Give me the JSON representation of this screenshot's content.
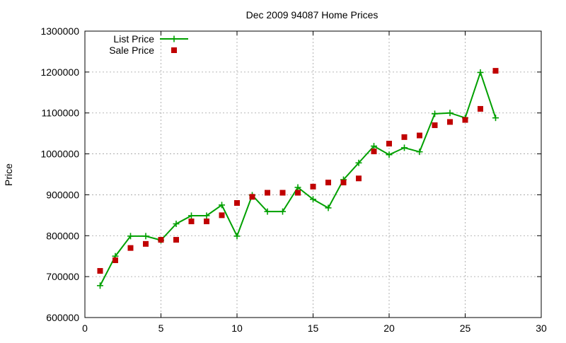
{
  "chart_data": {
    "type": "line",
    "title": "Dec 2009 94087 Home Prices",
    "xlabel": "",
    "ylabel": "Price",
    "xlim": [
      0,
      30
    ],
    "ylim": [
      600000,
      1300000
    ],
    "x_ticks": [
      0,
      5,
      10,
      15,
      20,
      25,
      30
    ],
    "y_ticks": [
      600000,
      700000,
      800000,
      900000,
      1000000,
      1100000,
      1200000,
      1300000
    ],
    "grid": true,
    "legend_position": "top-left",
    "series": [
      {
        "name": "List Price",
        "style": "line-with-plus-markers",
        "color": "#00a000",
        "x": [
          1,
          2,
          3,
          4,
          5,
          6,
          7,
          8,
          9,
          10,
          11,
          12,
          13,
          14,
          15,
          16,
          17,
          18,
          19,
          20,
          21,
          22,
          23,
          24,
          25,
          26,
          27
        ],
        "y": [
          678000,
          750000,
          799000,
          799000,
          789000,
          829000,
          849000,
          849000,
          875000,
          799000,
          899000,
          859000,
          859000,
          918000,
          889000,
          868000,
          937000,
          978000,
          1019000,
          998000,
          1015000,
          1005000,
          1098000,
          1100000,
          1088000,
          1199000,
          1088000
        ]
      },
      {
        "name": "Sale Price",
        "style": "square-markers",
        "color": "#c00000",
        "x": [
          1,
          2,
          3,
          4,
          5,
          6,
          7,
          8,
          9,
          10,
          11,
          12,
          13,
          14,
          15,
          16,
          17,
          18,
          19,
          20,
          21,
          22,
          23,
          24,
          25,
          26,
          27
        ],
        "y": [
          714000,
          740000,
          770000,
          780000,
          790000,
          790000,
          835000,
          835000,
          850000,
          880000,
          895000,
          905000,
          905000,
          905000,
          920000,
          930000,
          930000,
          940000,
          1006000,
          1025000,
          1041000,
          1045000,
          1070000,
          1078000,
          1083000,
          1110000,
          1203000
        ]
      }
    ]
  }
}
